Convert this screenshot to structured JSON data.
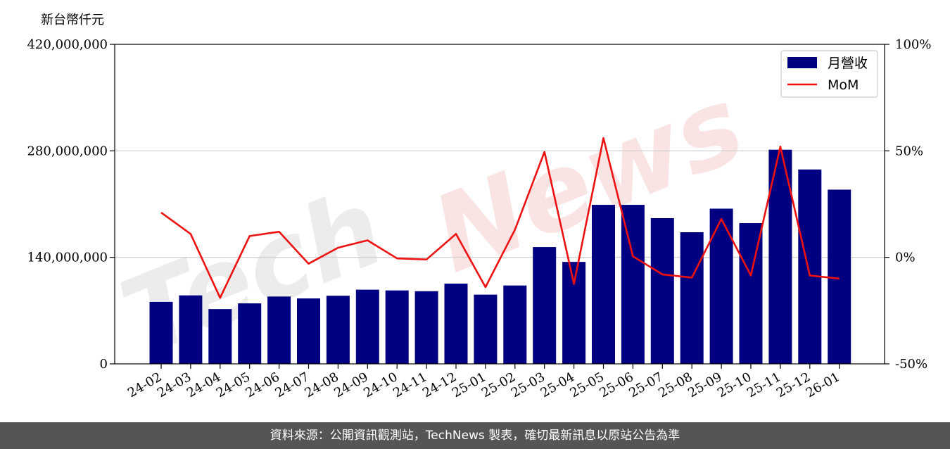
{
  "chart_data": {
    "type": "bar",
    "unit_label": "新台幣仟元",
    "categories": [
      "24-02",
      "24-03",
      "24-04",
      "24-05",
      "24-06",
      "24-07",
      "24-08",
      "24-09",
      "24-10",
      "24-11",
      "24-12",
      "25-01",
      "25-02",
      "25-03",
      "25-04",
      "25-05",
      "25-06",
      "25-07",
      "25-08",
      "25-09",
      "25-10",
      "25-11",
      "25-12",
      "26-01"
    ],
    "series": [
      {
        "name": "月營收",
        "axis": "left",
        "color": "#000080",
        "values": [
          81500000,
          90000000,
          72000000,
          79500000,
          88500000,
          86000000,
          89500000,
          97500000,
          96500000,
          95500000,
          105500000,
          91000000,
          103000000,
          153500000,
          134000000,
          209000000,
          209000000,
          191500000,
          173000000,
          204000000,
          185000000,
          281500000,
          255500000,
          229000000
        ]
      },
      {
        "name": "MoM",
        "axis": "right",
        "color": "#ee1111",
        "values": [
          21,
          11,
          -19,
          10,
          12,
          -3,
          4.5,
          8,
          -0.5,
          -1,
          11,
          -14,
          13,
          49.5,
          -12.5,
          56,
          0.5,
          -8,
          -9.5,
          18,
          -8.5,
          52,
          -8.5,
          -10
        ]
      }
    ],
    "y_left": {
      "min": 0,
      "max": 420000000,
      "ticks": [
        "0",
        "140,000,000",
        "280,000,000",
        "420,000,000"
      ]
    },
    "y_right": {
      "min": -50,
      "max": 100,
      "ticks": [
        "-50%",
        "0%",
        "50%",
        "100%"
      ]
    },
    "grid": "horizontal",
    "legend_position": "top-right"
  },
  "watermark": {
    "part1": "Tech",
    "part2": "News"
  },
  "footer": {
    "source_text": "資料來源：公開資訊觀測站，TechNews 製表，確切最新訊息以原站公告為準"
  }
}
